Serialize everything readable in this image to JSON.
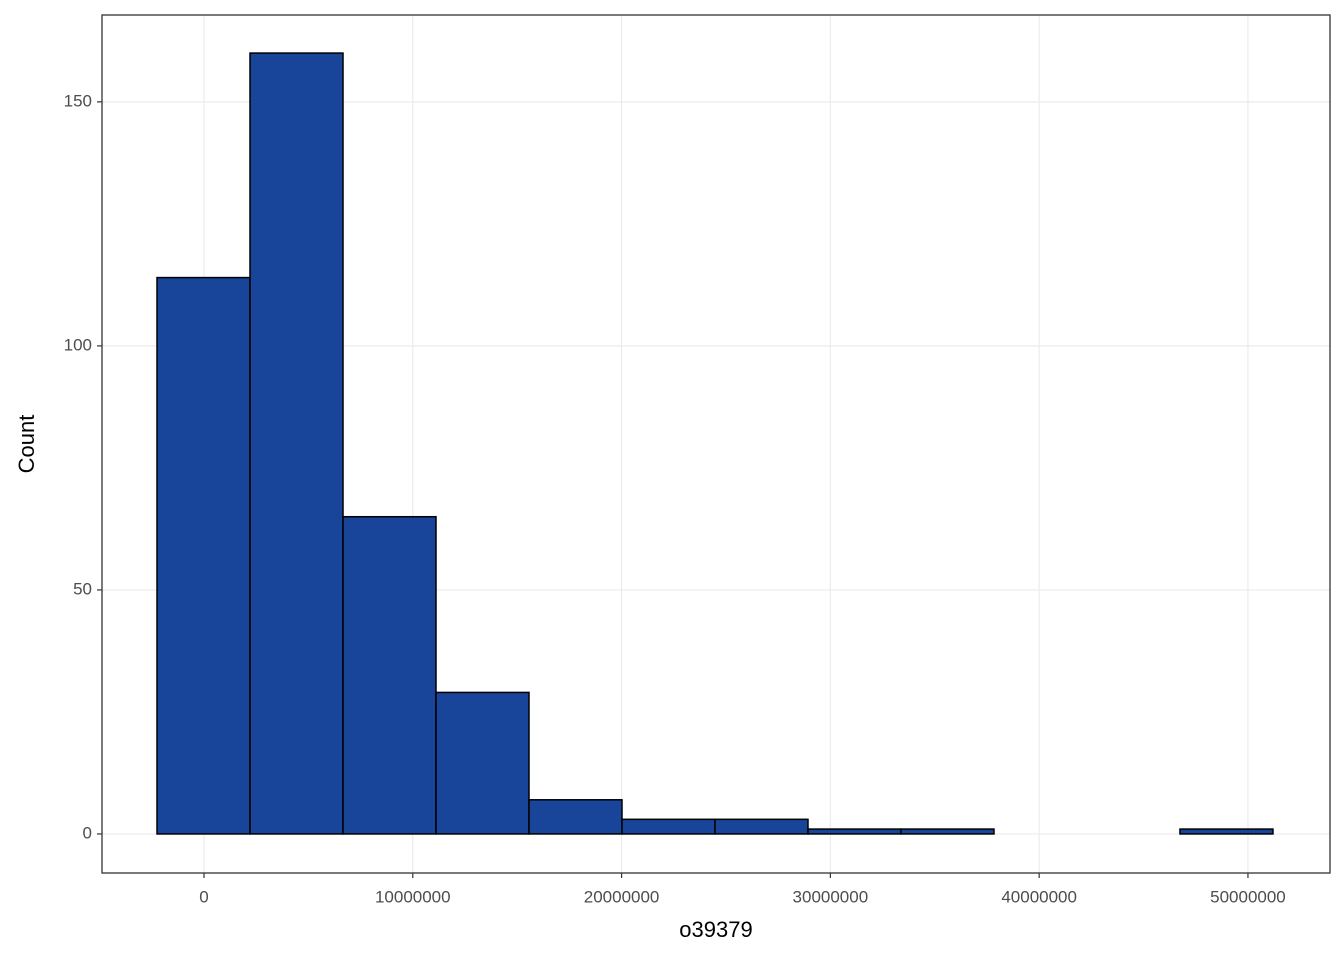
{
  "chart_data": {
    "type": "histogram",
    "x_label": "o39379",
    "y_label": "Count",
    "bins": [
      -2250000,
      2204000,
      6658000,
      11112000,
      15566000,
      20020000,
      24474000,
      28928000,
      33382000,
      37836000,
      42290000,
      46744000,
      51198000
    ],
    "counts": [
      114,
      160,
      65,
      29,
      7,
      3,
      3,
      1,
      1,
      0,
      0,
      1
    ],
    "color": "#18449a",
    "xlim": [
      -4885000,
      53930000
    ],
    "ylim": [
      -8,
      167.8
    ],
    "xticks": [
      0,
      10000000,
      20000000,
      30000000,
      40000000,
      50000000
    ],
    "yticks": [
      0,
      50,
      100,
      150
    ],
    "grid": true
  }
}
